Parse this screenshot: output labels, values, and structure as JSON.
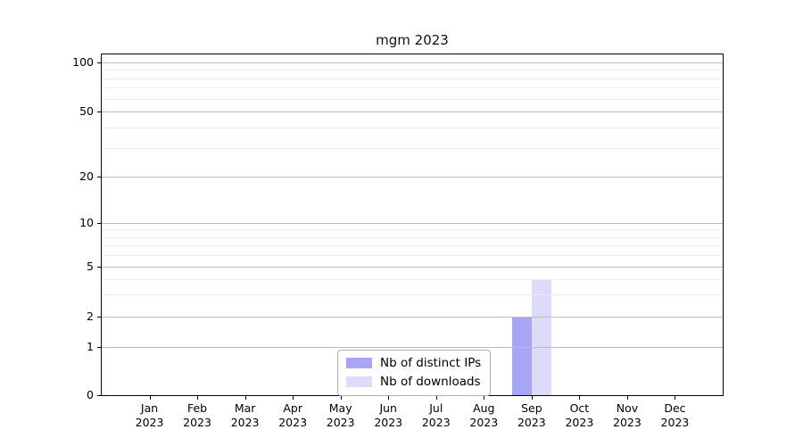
{
  "chart_data": {
    "type": "bar",
    "title": "mgm 2023",
    "categories": [
      "Jan",
      "Feb",
      "Mar",
      "Apr",
      "May",
      "Jun",
      "Jul",
      "Aug",
      "Sep",
      "Oct",
      "Nov",
      "Dec"
    ],
    "year_label": "2023",
    "series": [
      {
        "name": "Nb of distinct IPs",
        "color": "#a6a6f4",
        "values": [
          0,
          0,
          0,
          0,
          0,
          0,
          0,
          0,
          2,
          0,
          0,
          0
        ]
      },
      {
        "name": "Nb of downloads",
        "color": "#dcdcfa",
        "values": [
          0,
          0,
          0,
          0,
          0,
          0,
          0,
          0,
          4,
          0,
          0,
          0
        ]
      }
    ],
    "y_axis": {
      "scale": "log-like",
      "ticks": [
        0,
        1,
        2,
        5,
        10,
        20,
        50,
        100
      ],
      "minor_ticks": [
        3,
        4,
        6,
        7,
        8,
        9,
        30,
        40,
        60,
        70,
        80,
        90
      ]
    },
    "legend": {
      "position": "bottom-center"
    },
    "grid": "horizontal-major-and-minor-above-bars",
    "colors": {
      "spine": "#000000",
      "grid_major": "#bdbdbd",
      "grid_minor": "#ececec",
      "legend_border": "#b0b0b0"
    }
  }
}
